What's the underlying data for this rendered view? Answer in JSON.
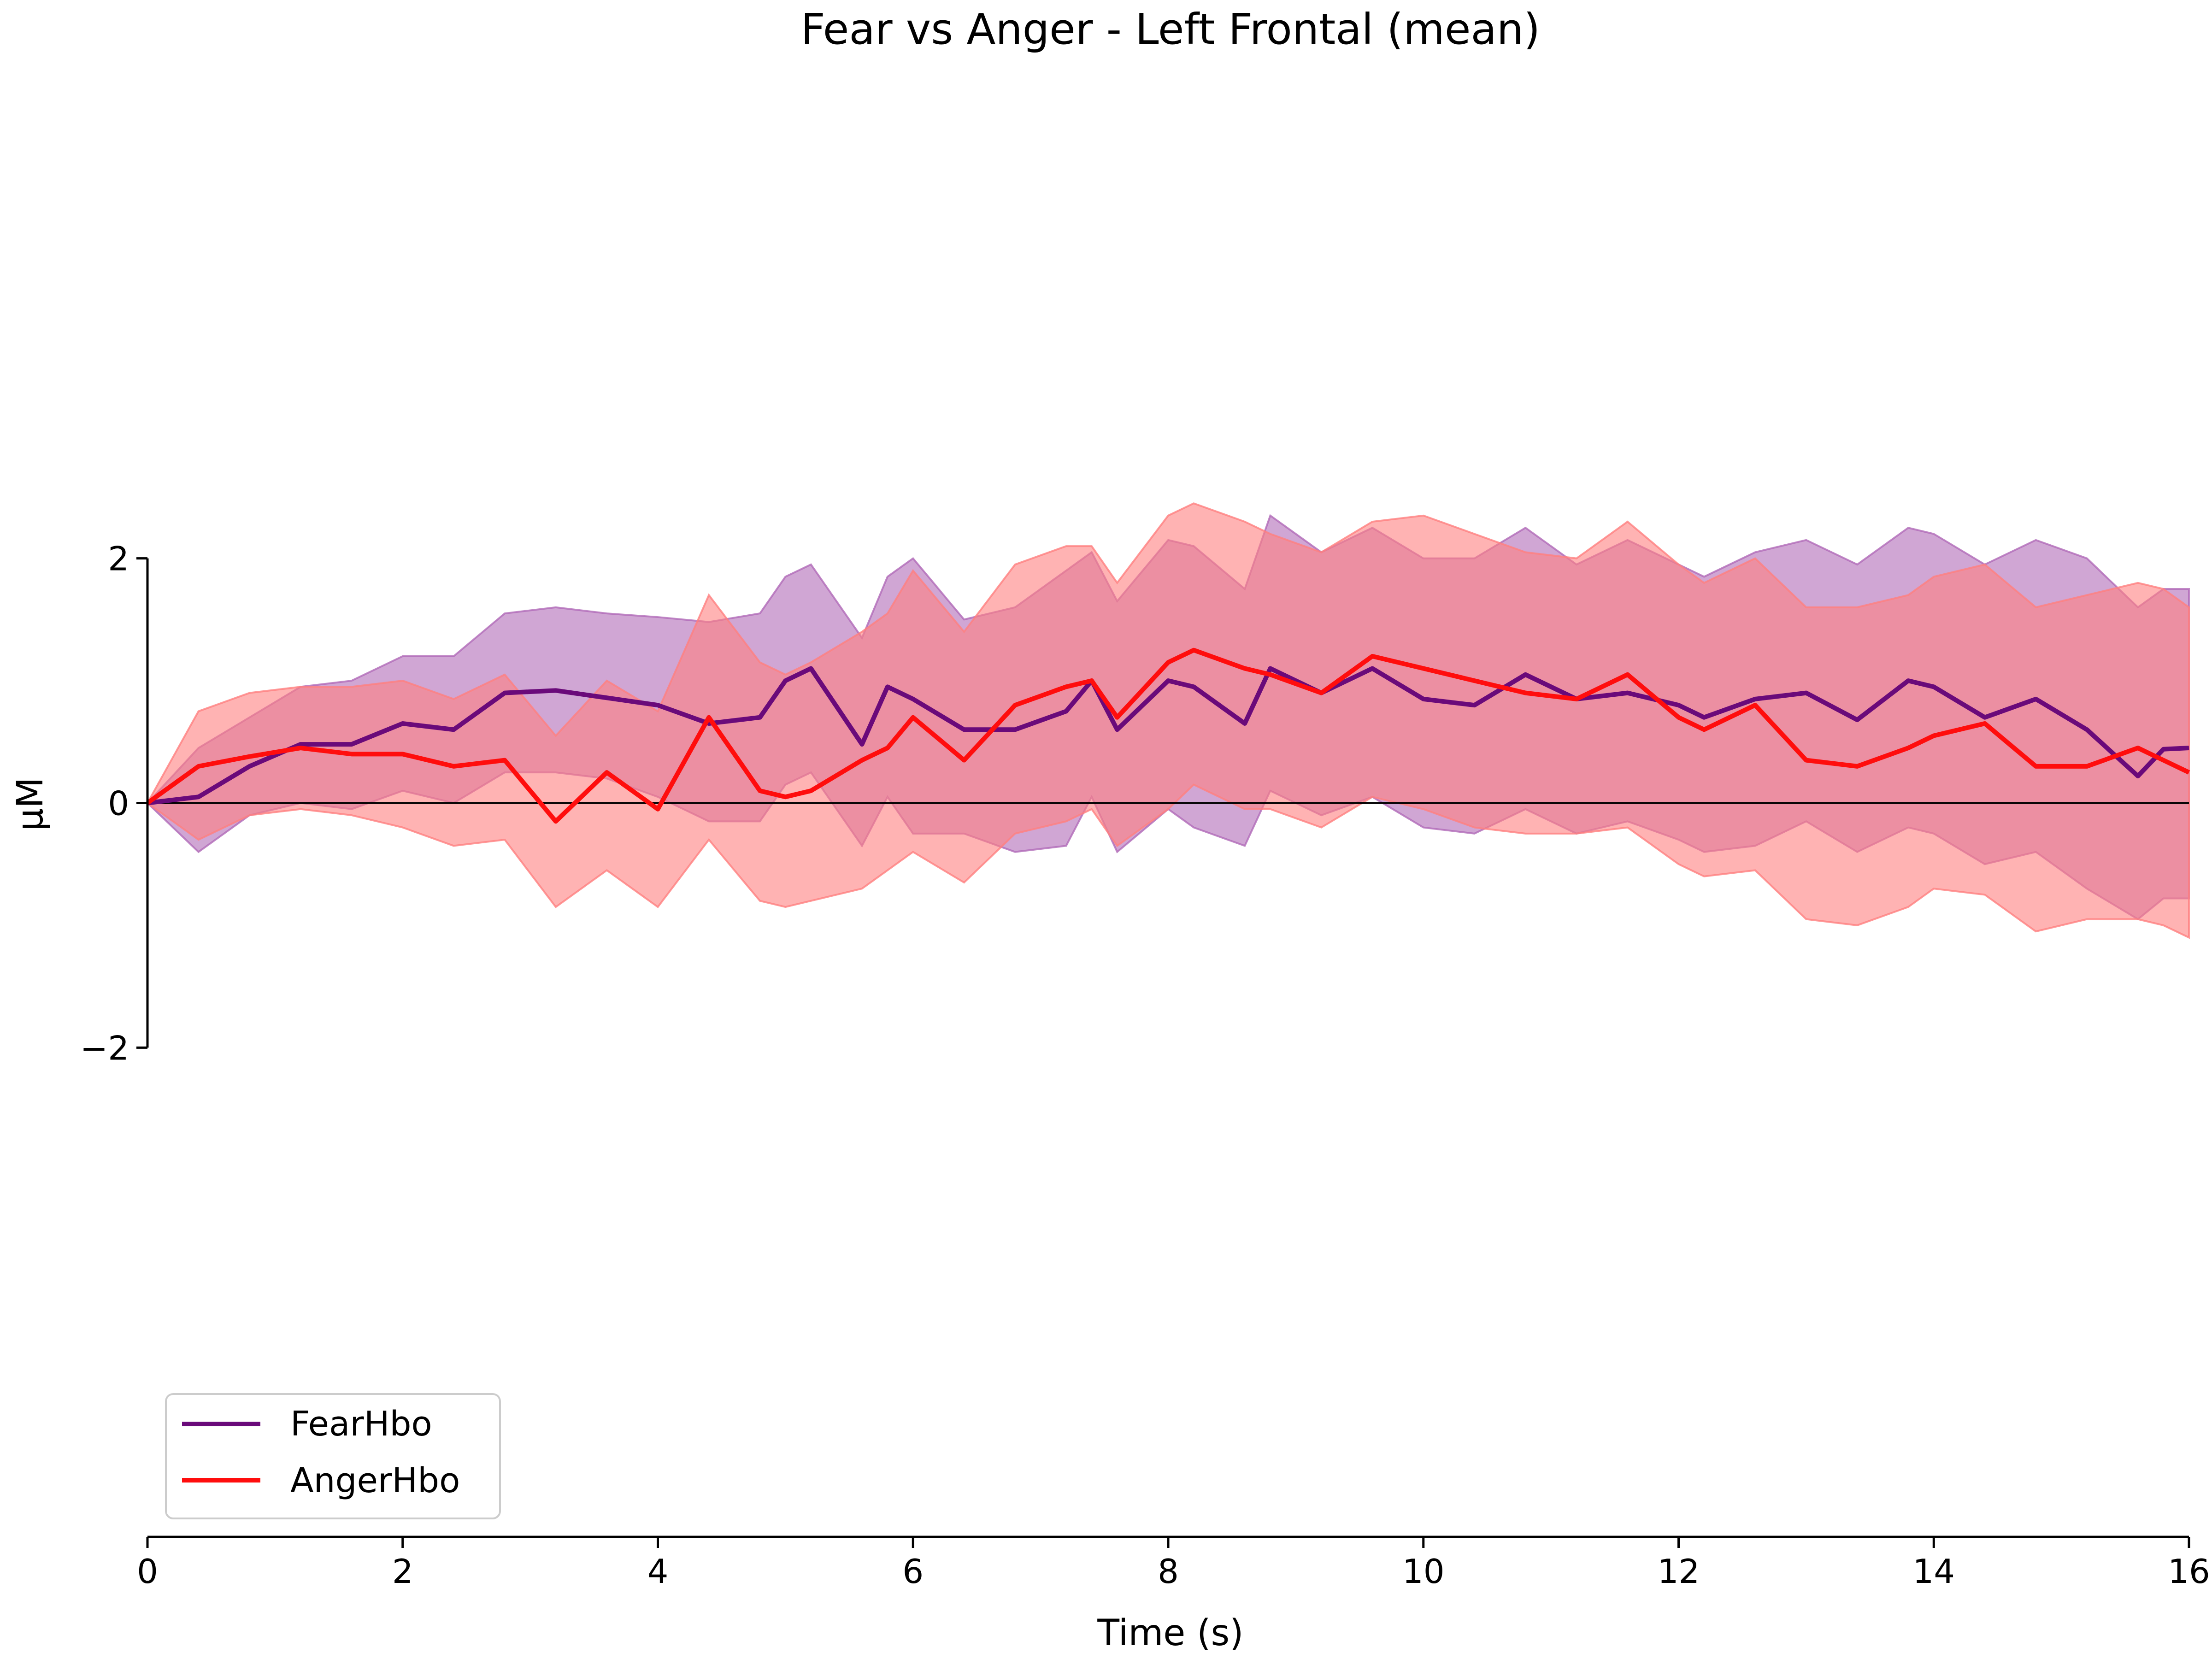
{
  "chart_data": {
    "type": "line",
    "title": "Fear vs Anger - Left Frontal (mean)",
    "xlabel": "Time (s)",
    "ylabel": "µM",
    "xlim": [
      0,
      16
    ],
    "ylim": [
      -6,
      6
    ],
    "yaxis_span": [
      -2,
      2
    ],
    "xticks": [
      0,
      2,
      4,
      6,
      8,
      10,
      12,
      14,
      16
    ],
    "yticks": [
      -2,
      0,
      2
    ],
    "xtick_labels": [
      "0",
      "2",
      "4",
      "6",
      "8",
      "10",
      "12",
      "14",
      "16"
    ],
    "ytick_labels": [
      "−2",
      "0",
      "2"
    ],
    "zero_line": true,
    "grid": false,
    "legend_position": "bottom-left",
    "x": [
      0.0,
      0.4,
      0.8,
      1.2,
      1.6,
      2.0,
      2.4,
      2.8,
      3.2,
      3.6,
      4.0,
      4.4,
      4.8,
      5.0,
      5.2,
      5.6,
      5.8,
      6.0,
      6.4,
      6.8,
      7.2,
      7.4,
      7.6,
      8.0,
      8.2,
      8.6,
      8.8,
      9.2,
      9.6,
      10.0,
      10.4,
      10.8,
      11.2,
      11.6,
      12.0,
      12.2,
      12.6,
      13.0,
      13.4,
      13.8,
      14.0,
      14.4,
      14.8,
      15.2,
      15.6,
      15.8,
      16.0
    ],
    "series": [
      {
        "name": "FearHbo",
        "color": "#6a0a7a",
        "band_color": "#b06ab8",
        "mean": [
          0.0,
          0.05,
          0.3,
          0.48,
          0.48,
          0.65,
          0.6,
          0.9,
          0.92,
          0.86,
          0.8,
          0.65,
          0.7,
          1.0,
          1.1,
          0.48,
          0.95,
          0.85,
          0.6,
          0.6,
          0.75,
          1.0,
          0.6,
          1.0,
          0.95,
          0.65,
          1.1,
          0.9,
          1.1,
          0.85,
          0.8,
          1.05,
          0.85,
          0.9,
          0.8,
          0.7,
          0.85,
          0.9,
          0.68,
          1.0,
          0.95,
          0.7,
          0.85,
          0.6,
          0.22,
          0.44,
          0.45
        ],
        "upper": [
          0.0,
          0.45,
          0.7,
          0.95,
          1.0,
          1.2,
          1.2,
          1.55,
          1.6,
          1.55,
          1.52,
          1.48,
          1.55,
          1.85,
          1.95,
          1.35,
          1.85,
          2.0,
          1.5,
          1.6,
          1.9,
          2.05,
          1.65,
          2.15,
          2.1,
          1.75,
          2.35,
          2.05,
          2.25,
          2.0,
          2.0,
          2.25,
          1.95,
          2.15,
          1.95,
          1.85,
          2.05,
          2.15,
          1.95,
          2.25,
          2.2,
          1.95,
          2.15,
          2.0,
          1.6,
          1.75,
          1.75
        ],
        "lower": [
          0.0,
          -0.4,
          -0.1,
          0.0,
          -0.05,
          0.1,
          0.0,
          0.25,
          0.25,
          0.2,
          0.05,
          -0.15,
          -0.15,
          0.15,
          0.25,
          -0.35,
          0.05,
          -0.25,
          -0.25,
          -0.4,
          -0.35,
          0.05,
          -0.4,
          -0.05,
          -0.2,
          -0.35,
          0.1,
          -0.1,
          0.05,
          -0.2,
          -0.25,
          -0.05,
          -0.25,
          -0.15,
          -0.3,
          -0.4,
          -0.35,
          -0.15,
          -0.4,
          -0.2,
          -0.25,
          -0.5,
          -0.4,
          -0.7,
          -0.95,
          -0.78,
          -0.78
        ]
      },
      {
        "name": "AngerHbo",
        "color": "#ff0d0d",
        "band_color": "#ff8080",
        "mean": [
          0.0,
          0.3,
          0.38,
          0.45,
          0.4,
          0.4,
          0.3,
          0.35,
          -0.15,
          0.25,
          -0.05,
          0.7,
          0.1,
          0.05,
          0.1,
          0.35,
          0.45,
          0.7,
          0.35,
          0.8,
          0.95,
          1.0,
          0.7,
          1.15,
          1.25,
          1.1,
          1.05,
          0.9,
          1.2,
          1.1,
          1.0,
          0.9,
          0.85,
          1.05,
          0.7,
          0.6,
          0.8,
          0.35,
          0.3,
          0.45,
          0.55,
          0.65,
          0.3,
          0.3,
          0.45,
          0.35,
          0.25
        ],
        "upper": [
          0.0,
          0.75,
          0.9,
          0.95,
          0.95,
          1.0,
          0.85,
          1.05,
          0.55,
          1.0,
          0.75,
          1.7,
          1.15,
          1.05,
          1.15,
          1.4,
          1.55,
          1.9,
          1.4,
          1.95,
          2.1,
          2.1,
          1.8,
          2.35,
          2.45,
          2.3,
          2.2,
          2.05,
          2.3,
          2.35,
          2.2,
          2.05,
          2.0,
          2.3,
          1.95,
          1.8,
          2.0,
          1.6,
          1.6,
          1.7,
          1.85,
          1.95,
          1.6,
          1.7,
          1.8,
          1.75,
          1.6
        ],
        "lower": [
          0.0,
          -0.3,
          -0.1,
          -0.05,
          -0.1,
          -0.2,
          -0.35,
          -0.3,
          -0.85,
          -0.55,
          -0.85,
          -0.3,
          -0.8,
          -0.85,
          -0.8,
          -0.7,
          -0.55,
          -0.4,
          -0.65,
          -0.25,
          -0.15,
          -0.05,
          -0.35,
          -0.05,
          0.15,
          -0.05,
          -0.05,
          -0.2,
          0.05,
          -0.05,
          -0.2,
          -0.25,
          -0.25,
          -0.2,
          -0.5,
          -0.6,
          -0.55,
          -0.95,
          -1.0,
          -0.85,
          -0.7,
          -0.75,
          -1.05,
          -0.95,
          -0.95,
          -1.0,
          -1.1
        ]
      }
    ]
  }
}
